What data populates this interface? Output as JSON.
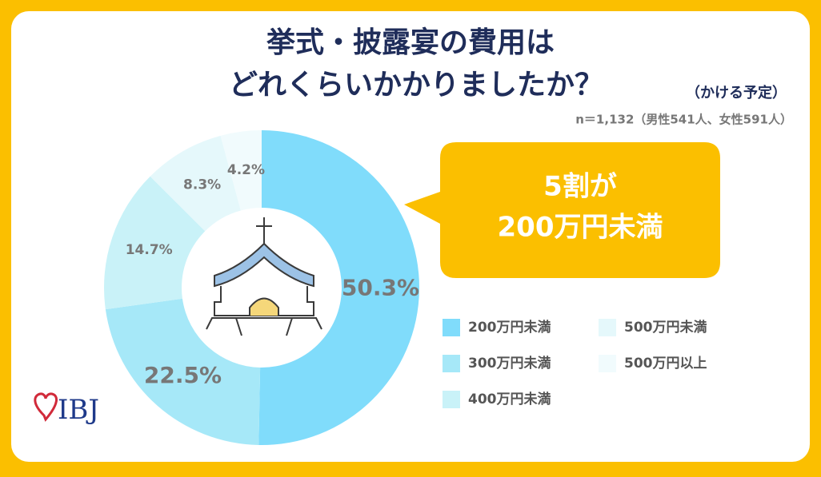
{
  "chart_data": {
    "type": "pie",
    "donut": true,
    "title_lines": [
      "挙式・披露宴の費用は",
      "どれくらいかかりましたか？"
    ],
    "title_note": "（かける予定）",
    "subtitle": "n＝1,132（男性541人、女性591人）",
    "annotation": [
      "5割が",
      "200万円未満"
    ],
    "categories": [
      "200万円未満",
      "300万円未満",
      "400万円未満",
      "500万円未満",
      "500万円以上"
    ],
    "values": [
      50.3,
      22.5,
      14.7,
      8.3,
      4.2
    ],
    "value_labels": [
      "50.3%",
      "22.5%",
      "14.7%",
      "8.3%",
      "4.2%"
    ],
    "colors": [
      "#80dcfb",
      "#a6e8f8",
      "#c9f2f8",
      "#e5f8fb",
      "#f1fbfd"
    ]
  },
  "logo": "IBJ"
}
